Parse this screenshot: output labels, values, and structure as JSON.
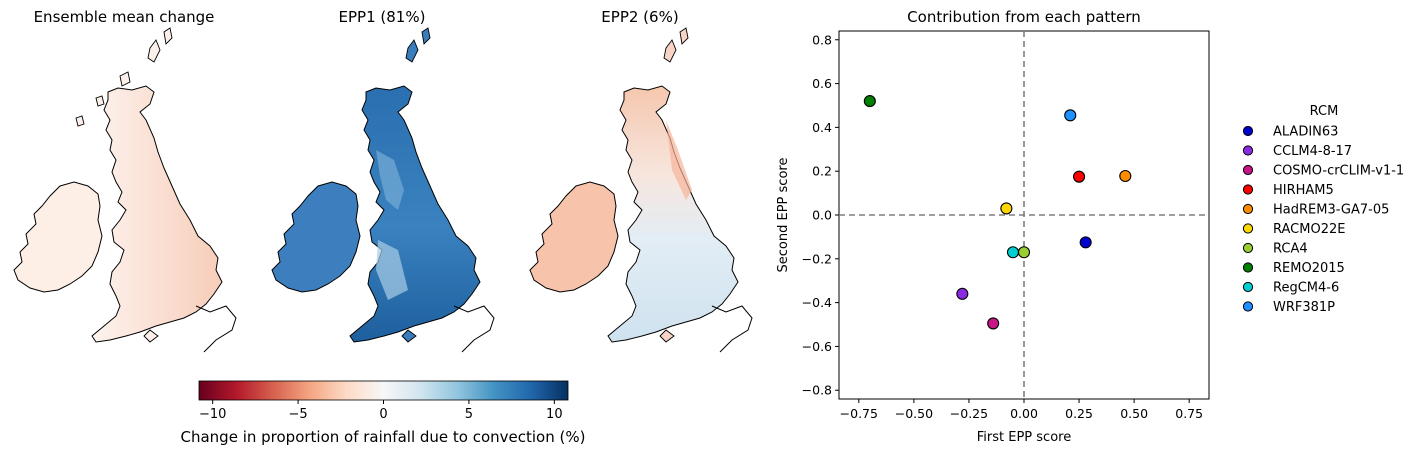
{
  "maps": {
    "titles": [
      "Ensemble mean change",
      "EPP1 (81%)",
      "EPP2 (6%)"
    ]
  },
  "colorbar": {
    "label": "Change in proportion of rainfall due to convection (%)",
    "range": [
      -10.8,
      10.8
    ],
    "ticks": [
      -10,
      -5,
      0,
      5,
      10
    ],
    "tick_labels": [
      "−10",
      "−5",
      "0",
      "5",
      "10"
    ],
    "colormap": [
      "#67001f",
      "#b2182b",
      "#d6604d",
      "#f4a582",
      "#fddbc7",
      "#f7f7f7",
      "#d1e5f0",
      "#92c5de",
      "#4393c3",
      "#2166ac",
      "#053061"
    ]
  },
  "chart_data": {
    "type": "scatter",
    "title": "Contribution from each pattern",
    "xlabel": "First EPP score",
    "ylabel": "Second EPP score",
    "xlim": [
      -0.84,
      0.84
    ],
    "ylim": [
      -0.84,
      0.84
    ],
    "xticks": [
      -0.75,
      -0.5,
      -0.25,
      0.0,
      0.25,
      0.5,
      0.75
    ],
    "xtick_labels": [
      "−0.75",
      "−0.50",
      "−0.25",
      "0.00",
      "0.25",
      "0.50",
      "0.75"
    ],
    "yticks": [
      -0.8,
      -0.6,
      -0.4,
      -0.2,
      0.0,
      0.2,
      0.4,
      0.6,
      0.8
    ],
    "ytick_labels": [
      "−0.8",
      "−0.6",
      "−0.4",
      "−0.2",
      "0.0",
      "0.2",
      "0.4",
      "0.6",
      "0.8"
    ],
    "grid": false,
    "reference_lines": {
      "x": 0,
      "y": 0,
      "style": "dashed",
      "color": "#7f7f7f"
    },
    "legend": {
      "title": "RCM",
      "placement": "outside-right"
    },
    "series": [
      {
        "name": "ALADIN63",
        "color": "#0000cd",
        "x": 0.28,
        "y": -0.125
      },
      {
        "name": "CCLM4-8-17",
        "color": "#8a2be2",
        "x": -0.28,
        "y": -0.36
      },
      {
        "name": "COSMO-crCLIM-v1-1",
        "color": "#c71585",
        "x": -0.14,
        "y": -0.495
      },
      {
        "name": "HIRHAM5",
        "color": "#ff0000",
        "x": 0.25,
        "y": 0.175
      },
      {
        "name": "HadREM3-GA7-05",
        "color": "#ff8c00",
        "x": 0.46,
        "y": 0.178
      },
      {
        "name": "RACMO22E",
        "color": "#ffd700",
        "x": -0.08,
        "y": 0.03
      },
      {
        "name": "RCA4",
        "color": "#9acd32",
        "x": 0.0,
        "y": -0.17
      },
      {
        "name": "REMO2015",
        "color": "#008000",
        "x": -0.7,
        "y": 0.52
      },
      {
        "name": "RegCM4-6",
        "color": "#00ced1",
        "x": -0.05,
        "y": -0.17
      },
      {
        "name": "WRF381P",
        "color": "#1e90ff",
        "x": 0.21,
        "y": 0.455
      }
    ]
  }
}
